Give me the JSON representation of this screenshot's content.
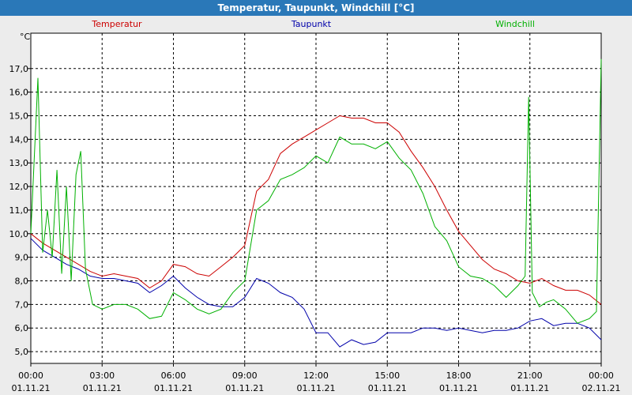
{
  "window": {
    "title": "Temperatur, Taupunkt, Windchill [°C]"
  },
  "chart_data": {
    "type": "line",
    "title": "Temperatur, Taupunkt, Windchill [°C]",
    "ylabel": "°C",
    "ylim": [
      4.5,
      18.5
    ],
    "yticks": [
      5.0,
      6.0,
      7.0,
      8.0,
      9.0,
      10.0,
      11.0,
      12.0,
      13.0,
      14.0,
      15.0,
      16.0,
      17.0
    ],
    "ytick_labels": [
      "5,0",
      "6,0",
      "7,0",
      "8,0",
      "9,0",
      "10,0",
      "11,0",
      "12,0",
      "13,0",
      "14,0",
      "15,0",
      "16,0",
      "17,0"
    ],
    "xlim": [
      0,
      24
    ],
    "xticks": [
      0,
      3,
      6,
      9,
      12,
      15,
      18,
      21,
      24
    ],
    "xtick_times": [
      "00:00",
      "03:00",
      "06:00",
      "09:00",
      "12:00",
      "15:00",
      "18:00",
      "21:00",
      "00:00"
    ],
    "xtick_dates": [
      "01.11.21",
      "01.11.21",
      "01.11.21",
      "01.11.21",
      "01.11.21",
      "01.11.21",
      "01.11.21",
      "01.11.21",
      "02.11.21"
    ],
    "grid": true,
    "series": [
      {
        "name": "Temperatur",
        "color": "#cc0000",
        "x": [
          0,
          0.5,
          1,
          1.5,
          2,
          2.5,
          3,
          3.5,
          4,
          4.5,
          5,
          5.5,
          6,
          6.5,
          7,
          7.5,
          8,
          8.5,
          9,
          9.5,
          10,
          10.5,
          11,
          11.5,
          12,
          12.5,
          13,
          13.5,
          14,
          14.5,
          15,
          15.5,
          16,
          16.5,
          17,
          17.5,
          18,
          18.5,
          19,
          19.5,
          20,
          20.5,
          21,
          21.5,
          22,
          22.5,
          23,
          23.5,
          24
        ],
        "values": [
          10.0,
          9.6,
          9.3,
          9.0,
          8.7,
          8.4,
          8.2,
          8.3,
          8.2,
          8.1,
          7.7,
          8.0,
          8.7,
          8.6,
          8.3,
          8.2,
          8.6,
          9.0,
          9.5,
          11.8,
          12.3,
          13.4,
          13.8,
          14.1,
          14.4,
          14.7,
          15.0,
          14.9,
          14.9,
          14.7,
          14.7,
          14.3,
          13.5,
          12.8,
          12.0,
          11.0,
          10.1,
          9.5,
          8.9,
          8.5,
          8.3,
          8.0,
          7.9,
          8.1,
          7.8,
          7.6,
          7.6,
          7.4,
          7.0
        ]
      },
      {
        "name": "Taupunkt",
        "color": "#0000aa",
        "x": [
          0,
          0.5,
          1,
          1.5,
          2,
          2.5,
          3,
          3.5,
          4,
          4.5,
          5,
          5.5,
          6,
          6.5,
          7,
          7.5,
          8,
          8.5,
          9,
          9.5,
          10,
          10.5,
          11,
          11.5,
          12,
          12.5,
          13,
          13.5,
          14,
          14.5,
          15,
          15.5,
          16,
          16.5,
          17,
          17.5,
          18,
          18.5,
          19,
          19.5,
          20,
          20.5,
          21,
          21.5,
          22,
          22.5,
          23,
          23.5,
          24
        ],
        "values": [
          9.8,
          9.3,
          9.0,
          8.7,
          8.5,
          8.2,
          8.1,
          8.1,
          8.0,
          7.9,
          7.5,
          7.8,
          8.2,
          7.7,
          7.3,
          7.0,
          6.9,
          6.9,
          7.3,
          8.1,
          7.9,
          7.5,
          7.3,
          6.8,
          5.8,
          5.8,
          5.2,
          5.5,
          5.3,
          5.4,
          5.8,
          5.8,
          5.8,
          6.0,
          6.0,
          5.9,
          6.0,
          5.9,
          5.8,
          5.9,
          5.9,
          6.0,
          6.3,
          6.4,
          6.1,
          6.2,
          6.2,
          6.0,
          5.5
        ]
      },
      {
        "name": "Windchill",
        "color": "#00b000",
        "x": [
          0,
          0.3,
          0.5,
          0.7,
          0.9,
          1.1,
          1.3,
          1.5,
          1.7,
          1.9,
          2.1,
          2.3,
          2.5,
          2.6,
          3,
          3.5,
          4,
          4.5,
          5,
          5.5,
          6,
          6.5,
          7,
          7.5,
          8,
          8.5,
          9,
          9.5,
          10,
          10.5,
          11,
          11.5,
          12,
          12.5,
          13,
          13.5,
          14,
          14.5,
          15,
          15.5,
          16,
          16.5,
          17,
          17.5,
          18,
          18.5,
          19,
          19.5,
          20,
          20.5,
          20.8,
          20.95,
          21.1,
          21.4,
          21.7,
          22,
          22.5,
          23,
          23.5,
          23.8,
          24
        ],
        "values": [
          10.0,
          16.6,
          9.2,
          11.0,
          9.0,
          12.7,
          8.3,
          12.0,
          8.0,
          12.5,
          13.5,
          8.5,
          7.5,
          7.0,
          6.8,
          7.0,
          7.0,
          6.8,
          6.4,
          6.5,
          7.5,
          7.2,
          6.8,
          6.6,
          6.8,
          7.5,
          8.0,
          11.0,
          11.4,
          12.3,
          12.5,
          12.8,
          13.3,
          13.0,
          14.1,
          13.8,
          13.8,
          13.6,
          13.9,
          13.2,
          12.7,
          11.7,
          10.3,
          9.7,
          8.6,
          8.2,
          8.1,
          7.8,
          7.3,
          7.8,
          8.2,
          15.8,
          7.5,
          6.9,
          7.1,
          7.2,
          6.8,
          6.2,
          6.4,
          6.7,
          17.4
        ]
      }
    ]
  }
}
